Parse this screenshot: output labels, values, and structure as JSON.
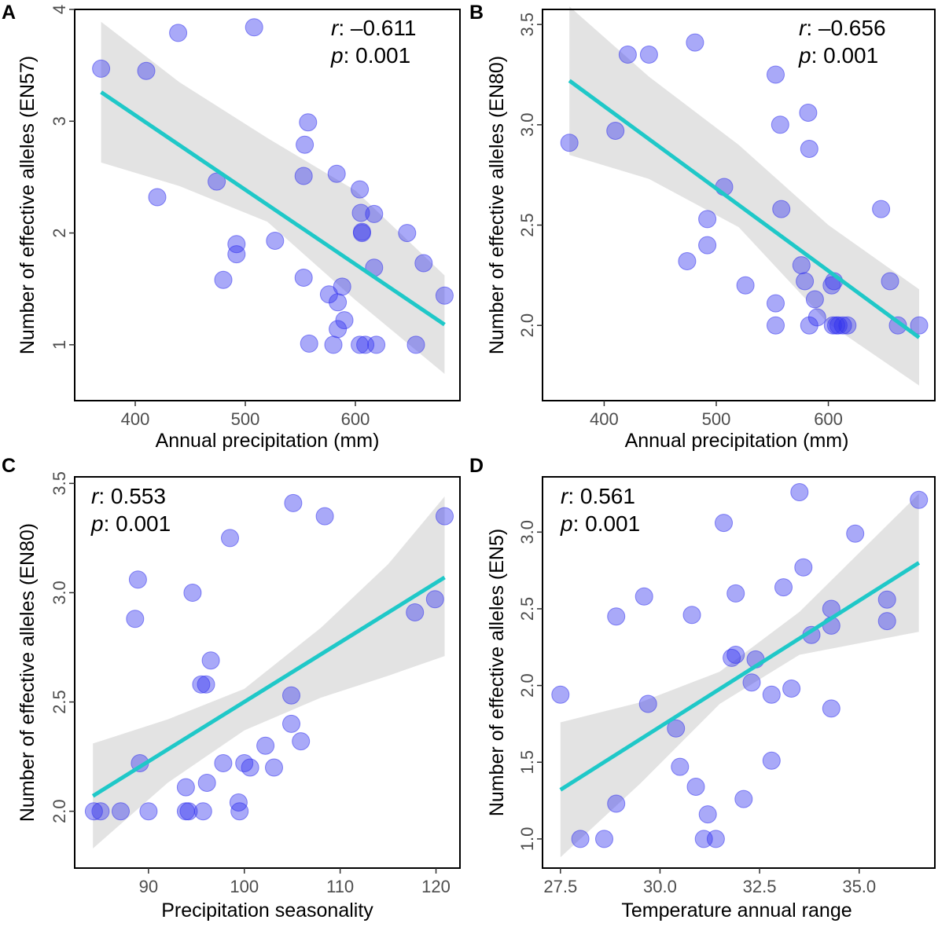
{
  "colors": {
    "points": "#3333ee",
    "fit_line": "#1fc8c8",
    "ribbon": "#d9d9d9"
  },
  "chart_data": [
    {
      "panel": "A",
      "type": "scatter",
      "xlabel": "Annual precipitation (mm)",
      "ylabel": "Number of effective alleles (EN57)",
      "xlim": [
        345,
        695
      ],
      "ylim": [
        0.5,
        4.0
      ],
      "xticks": [
        400,
        500,
        600
      ],
      "yticks": [
        1,
        2,
        3,
        4
      ],
      "xtick_labels": [
        "400",
        "500",
        "600"
      ],
      "ytick_labels": [
        "1",
        "2",
        "3",
        "4"
      ],
      "stats": {
        "r_symbol": "r",
        "r_value": ": –0.611",
        "p_symbol": "p",
        "p_value": ": 0.001"
      },
      "stats_position": "top-right",
      "fit": {
        "x": [
          369,
          681
        ],
        "y": [
          3.26,
          1.18
        ]
      },
      "ci": {
        "x": [
          369,
          440,
          520,
          600,
          681
        ],
        "upper": [
          3.89,
          3.35,
          2.85,
          2.38,
          1.62
        ],
        "lower": [
          2.63,
          2.42,
          2.1,
          1.4,
          0.74
        ]
      },
      "points": [
        {
          "x": 369,
          "y": 3.47
        },
        {
          "x": 410,
          "y": 3.45
        },
        {
          "x": 420,
          "y": 2.32
        },
        {
          "x": 439,
          "y": 3.79
        },
        {
          "x": 474,
          "y": 2.46
        },
        {
          "x": 480,
          "y": 1.58
        },
        {
          "x": 492,
          "y": 1.9
        },
        {
          "x": 492,
          "y": 1.81
        },
        {
          "x": 508,
          "y": 3.84
        },
        {
          "x": 527,
          "y": 1.93
        },
        {
          "x": 553,
          "y": 1.6
        },
        {
          "x": 553,
          "y": 2.51
        },
        {
          "x": 554,
          "y": 2.79
        },
        {
          "x": 557,
          "y": 2.99
        },
        {
          "x": 558,
          "y": 1.01
        },
        {
          "x": 576,
          "y": 1.45
        },
        {
          "x": 580,
          "y": 1.0
        },
        {
          "x": 583,
          "y": 2.53
        },
        {
          "x": 584,
          "y": 1.14
        },
        {
          "x": 584,
          "y": 1.38
        },
        {
          "x": 588,
          "y": 1.52
        },
        {
          "x": 590,
          "y": 1.22
        },
        {
          "x": 604,
          "y": 2.39
        },
        {
          "x": 604,
          "y": 1.0
        },
        {
          "x": 605,
          "y": 2.18
        },
        {
          "x": 606,
          "y": 2.01
        },
        {
          "x": 606,
          "y": 2.0
        },
        {
          "x": 609,
          "y": 1.0
        },
        {
          "x": 617,
          "y": 2.17
        },
        {
          "x": 617,
          "y": 1.69
        },
        {
          "x": 619,
          "y": 1.0
        },
        {
          "x": 647,
          "y": 2.0
        },
        {
          "x": 655,
          "y": 1.0
        },
        {
          "x": 662,
          "y": 1.73
        },
        {
          "x": 681,
          "y": 1.44
        }
      ]
    },
    {
      "panel": "B",
      "type": "scatter",
      "xlabel": "Annual precipitation (mm)",
      "ylabel": "Number of effective alleles (EN80)",
      "xlim": [
        345,
        695
      ],
      "ylim": [
        1.625,
        3.575
      ],
      "xticks": [
        400,
        500,
        600
      ],
      "yticks": [
        2.0,
        2.5,
        3.0,
        3.5
      ],
      "xtick_labels": [
        "400",
        "500",
        "600"
      ],
      "ytick_labels": [
        "2.0",
        "2.5",
        "3.0",
        "3.5"
      ],
      "stats": {
        "r_symbol": "r",
        "r_value": ": –0.656",
        "p_symbol": "p",
        "p_value": ": 0.001"
      },
      "stats_position": "top-right",
      "fit": {
        "x": [
          369,
          681
        ],
        "y": [
          3.22,
          1.94
        ]
      },
      "ci": {
        "x": [
          369,
          440,
          520,
          600,
          681
        ],
        "upper": [
          3.59,
          3.24,
          2.9,
          2.5,
          2.18
        ],
        "lower": [
          2.85,
          2.73,
          2.49,
          2.01,
          1.7
        ]
      },
      "points": [
        {
          "x": 369,
          "y": 2.91
        },
        {
          "x": 410,
          "y": 2.97
        },
        {
          "x": 421,
          "y": 3.35
        },
        {
          "x": 440,
          "y": 3.35
        },
        {
          "x": 474,
          "y": 2.32
        },
        {
          "x": 481,
          "y": 3.41
        },
        {
          "x": 492,
          "y": 2.4
        },
        {
          "x": 492,
          "y": 2.53
        },
        {
          "x": 507,
          "y": 2.69
        },
        {
          "x": 526,
          "y": 2.2
        },
        {
          "x": 553,
          "y": 3.25
        },
        {
          "x": 553,
          "y": 2.11
        },
        {
          "x": 553,
          "y": 2.0
        },
        {
          "x": 557,
          "y": 3.0
        },
        {
          "x": 558,
          "y": 2.58
        },
        {
          "x": 576,
          "y": 2.3
        },
        {
          "x": 579,
          "y": 2.22
        },
        {
          "x": 582,
          "y": 3.06
        },
        {
          "x": 583,
          "y": 2.88
        },
        {
          "x": 583,
          "y": 2.0
        },
        {
          "x": 588,
          "y": 2.13
        },
        {
          "x": 590,
          "y": 2.04
        },
        {
          "x": 603,
          "y": 2.2
        },
        {
          "x": 604,
          "y": 2.0
        },
        {
          "x": 605,
          "y": 2.22
        },
        {
          "x": 607,
          "y": 2.0
        },
        {
          "x": 609,
          "y": 2.0
        },
        {
          "x": 613,
          "y": 2.0
        },
        {
          "x": 617,
          "y": 2.0
        },
        {
          "x": 647,
          "y": 2.58
        },
        {
          "x": 655,
          "y": 2.22
        },
        {
          "x": 662,
          "y": 2.0
        },
        {
          "x": 681,
          "y": 2.0
        }
      ]
    },
    {
      "panel": "C",
      "type": "scatter",
      "xlabel": "Precipitation seasonality",
      "ylabel": "Number of effective alleles (EN80)",
      "xlim": [
        82.3,
        122.5
      ],
      "ylim": [
        1.74,
        3.53
      ],
      "xticks": [
        90,
        100,
        110,
        120
      ],
      "yticks": [
        2.0,
        2.5,
        3.0,
        3.5
      ],
      "xtick_labels": [
        "90",
        "100",
        "110",
        "120"
      ],
      "ytick_labels": [
        "2.0",
        "2.5",
        "3.0",
        "3.5"
      ],
      "stats": {
        "r_symbol": "r",
        "r_value": ": 0.553",
        "p_symbol": "p",
        "p_value": ": 0.001"
      },
      "stats_position": "top-left",
      "fit": {
        "x": [
          84.2,
          120.9
        ],
        "y": [
          2.07,
          3.07
        ]
      },
      "ci": {
        "x": [
          84.2,
          92,
          100,
          108,
          115,
          120.9
        ],
        "upper": [
          2.31,
          2.42,
          2.56,
          2.84,
          3.13,
          3.44
        ],
        "lower": [
          1.83,
          2.13,
          2.37,
          2.52,
          2.62,
          2.71
        ]
      },
      "points": [
        {
          "x": 84.3,
          "y": 2.0
        },
        {
          "x": 85.0,
          "y": 2.0
        },
        {
          "x": 87.1,
          "y": 2.0
        },
        {
          "x": 88.6,
          "y": 2.88
        },
        {
          "x": 88.9,
          "y": 3.06
        },
        {
          "x": 89.1,
          "y": 2.22
        },
        {
          "x": 90.0,
          "y": 2.0
        },
        {
          "x": 93.9,
          "y": 2.0
        },
        {
          "x": 93.9,
          "y": 2.11
        },
        {
          "x": 94.2,
          "y": 2.0
        },
        {
          "x": 94.6,
          "y": 3.0
        },
        {
          "x": 95.5,
          "y": 2.58
        },
        {
          "x": 95.7,
          "y": 2.0
        },
        {
          "x": 96.0,
          "y": 2.58
        },
        {
          "x": 96.1,
          "y": 2.13
        },
        {
          "x": 96.5,
          "y": 2.69
        },
        {
          "x": 97.8,
          "y": 2.22
        },
        {
          "x": 98.5,
          "y": 3.25
        },
        {
          "x": 99.4,
          "y": 2.04
        },
        {
          "x": 99.5,
          "y": 2.0
        },
        {
          "x": 100.0,
          "y": 2.22
        },
        {
          "x": 100.6,
          "y": 2.2
        },
        {
          "x": 102.2,
          "y": 2.3
        },
        {
          "x": 103.1,
          "y": 2.2
        },
        {
          "x": 104.9,
          "y": 2.53
        },
        {
          "x": 104.9,
          "y": 2.4
        },
        {
          "x": 105.1,
          "y": 3.41
        },
        {
          "x": 105.9,
          "y": 2.32
        },
        {
          "x": 108.4,
          "y": 3.35
        },
        {
          "x": 117.8,
          "y": 2.91
        },
        {
          "x": 119.9,
          "y": 2.97
        },
        {
          "x": 120.9,
          "y": 3.35
        }
      ]
    },
    {
      "panel": "D",
      "type": "scatter",
      "xlabel": "Temperature annual range",
      "ylabel": "Number of effective alleles (EN5)",
      "xlim": [
        27.05,
        36.9
      ],
      "ylim": [
        0.81,
        3.36
      ],
      "xticks": [
        27.5,
        30.0,
        32.5,
        35.0
      ],
      "yticks": [
        1.0,
        1.5,
        2.0,
        2.5,
        3.0
      ],
      "xtick_labels": [
        "27.5",
        "30.0",
        "32.5",
        "35.0"
      ],
      "ytick_labels": [
        "1.0",
        "1.5",
        "2.0",
        "2.5",
        "3.0"
      ],
      "stats": {
        "r_symbol": "r",
        "r_value": ": 0.561",
        "p_symbol": "p",
        "p_value": ": 0.001"
      },
      "stats_position": "top-left",
      "fit": {
        "x": [
          27.5,
          36.5
        ],
        "y": [
          1.32,
          2.8
        ]
      },
      "ci": {
        "x": [
          27.5,
          29.5,
          31.5,
          33.5,
          36.5
        ],
        "upper": [
          1.76,
          1.89,
          2.09,
          2.48,
          3.25
        ],
        "lower": [
          0.88,
          1.36,
          1.88,
          2.2,
          2.35
        ]
      },
      "points": [
        {
          "x": 27.5,
          "y": 1.94
        },
        {
          "x": 28.0,
          "y": 1.0
        },
        {
          "x": 28.6,
          "y": 1.0
        },
        {
          "x": 28.9,
          "y": 2.45
        },
        {
          "x": 28.9,
          "y": 1.23
        },
        {
          "x": 29.6,
          "y": 2.58
        },
        {
          "x": 29.7,
          "y": 1.88
        },
        {
          "x": 30.4,
          "y": 1.72
        },
        {
          "x": 30.5,
          "y": 1.47
        },
        {
          "x": 30.8,
          "y": 2.46
        },
        {
          "x": 30.9,
          "y": 1.34
        },
        {
          "x": 31.1,
          "y": 1.0
        },
        {
          "x": 31.2,
          "y": 1.16
        },
        {
          "x": 31.4,
          "y": 1.0
        },
        {
          "x": 31.6,
          "y": 3.06
        },
        {
          "x": 31.8,
          "y": 2.18
        },
        {
          "x": 31.9,
          "y": 2.2
        },
        {
          "x": 31.9,
          "y": 2.6
        },
        {
          "x": 32.1,
          "y": 1.26
        },
        {
          "x": 32.3,
          "y": 2.02
        },
        {
          "x": 32.4,
          "y": 2.17
        },
        {
          "x": 32.8,
          "y": 1.94
        },
        {
          "x": 32.8,
          "y": 1.51
        },
        {
          "x": 33.1,
          "y": 2.64
        },
        {
          "x": 33.3,
          "y": 1.98
        },
        {
          "x": 33.5,
          "y": 3.26
        },
        {
          "x": 33.6,
          "y": 2.77
        },
        {
          "x": 33.8,
          "y": 2.33
        },
        {
          "x": 34.3,
          "y": 2.5
        },
        {
          "x": 34.3,
          "y": 2.39
        },
        {
          "x": 34.3,
          "y": 1.85
        },
        {
          "x": 34.9,
          "y": 2.99
        },
        {
          "x": 35.7,
          "y": 2.56
        },
        {
          "x": 35.7,
          "y": 2.42
        },
        {
          "x": 36.5,
          "y": 3.21
        }
      ]
    }
  ]
}
